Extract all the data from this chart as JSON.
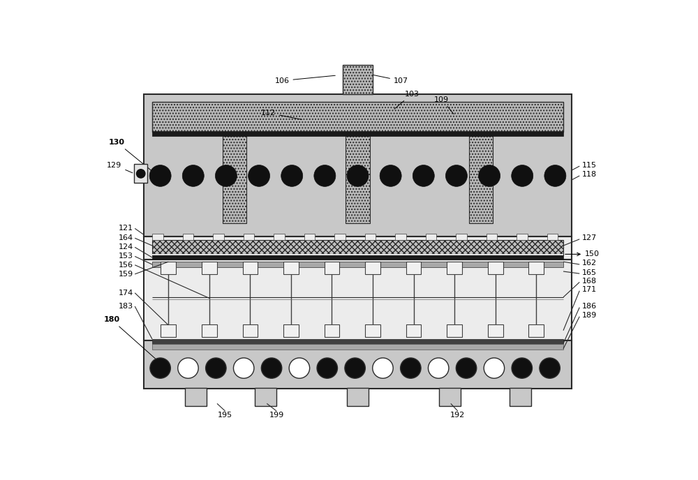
{
  "bg_color": "#ffffff",
  "fig_width": 10.0,
  "fig_height": 6.88,
  "label_fs": 8,
  "colors": {
    "outer_frame": "#c8c8c8",
    "stipple_fill": "#b8b8b8",
    "light_bg": "#e4e4e4",
    "medium_gray": "#a8a8a8",
    "dark_bar": "#1a1a1a",
    "white": "#ffffff",
    "black": "#101010",
    "border": "#2a2a2a",
    "pin_white": "#f0f0f0",
    "crosshatch_fill": "#c0c0c0",
    "very_light": "#ececec",
    "connector_col": "#d0d0d0"
  }
}
